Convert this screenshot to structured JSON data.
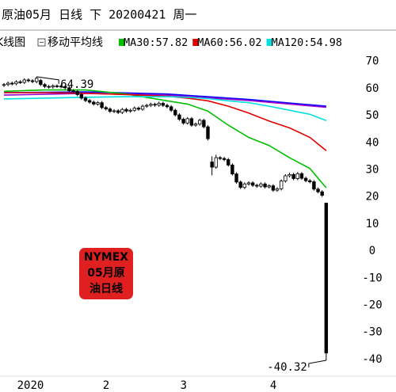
{
  "header": {
    "title": "原油05月 日线 下 20200421 周一"
  },
  "legend": {
    "chart_label": "K线图",
    "ma_label": "移动平均线"
  },
  "badge": [
    "NYMEX",
    "05月原",
    "油日线"
  ],
  "chart_data": {
    "type": "candlestick",
    "categories": [
      null,
      null,
      null,
      null,
      "2020",
      null,
      null,
      null,
      null,
      null,
      null,
      null,
      null,
      null,
      null,
      null,
      null,
      null,
      null,
      null,
      null,
      null,
      null,
      null,
      null,
      "2",
      null,
      null,
      null,
      null,
      null,
      null,
      null,
      null,
      null,
      null,
      null,
      null,
      null,
      null,
      null,
      null,
      null,
      null,
      "3",
      null,
      null,
      null,
      null,
      null,
      null,
      null,
      null,
      null,
      null,
      null,
      null,
      null,
      null,
      null,
      null,
      null,
      null,
      null,
      null,
      null,
      "4",
      null,
      null,
      null,
      null,
      null,
      null,
      null,
      null,
      null,
      null,
      null,
      null,
      null
    ],
    "open": [
      61.2,
      61.5,
      62.0,
      61.8,
      62.5,
      62.3,
      63.2,
      62.9,
      62.6,
      63.0,
      61.5,
      60.8,
      60.6,
      61.0,
      60.9,
      60.7,
      60.3,
      59.2,
      59.0,
      57.8,
      56.5,
      55.6,
      55.0,
      54.3,
      54.8,
      53.0,
      52.5,
      51.6,
      51.8,
      51.2,
      52.3,
      51.7,
      52.0,
      52.8,
      52.4,
      53.5,
      53.8,
      54.2,
      53.9,
      54.6,
      53.8,
      53.3,
      52.0,
      50.3,
      48.7,
      47.3,
      48.9,
      46.5,
      46.9,
      48.3,
      45.9,
      32.9,
      31.0,
      34.5,
      34.2,
      33.8,
      31.8,
      28.5,
      25.5,
      23.5,
      24.8,
      25.2,
      24.3,
      24.0,
      24.8,
      23.7,
      24.1,
      22.5,
      23.0,
      25.9,
      27.8,
      28.3,
      26.8,
      28.6,
      26.9,
      26.0,
      25.6,
      22.9,
      21.9,
      17.73
    ],
    "high": [
      62.1,
      62.6,
      62.6,
      63.1,
      63.1,
      63.8,
      63.8,
      63.5,
      64.39,
      63.6,
      62.1,
      61.4,
      61.6,
      61.6,
      61.5,
      61.3,
      60.9,
      59.8,
      59.6,
      58.4,
      57.1,
      56.2,
      55.6,
      55.4,
      55.4,
      53.6,
      53.1,
      52.4,
      52.4,
      52.9,
      52.9,
      52.6,
      53.4,
      53.4,
      54.1,
      54.4,
      54.8,
      54.8,
      55.2,
      55.2,
      54.4,
      53.9,
      52.6,
      50.9,
      49.3,
      49.5,
      49.5,
      47.5,
      48.9,
      48.9,
      46.5,
      35.0,
      35.6,
      35.1,
      34.8,
      34.4,
      32.4,
      29.1,
      26.1,
      25.4,
      25.8,
      25.8,
      24.9,
      25.4,
      25.4,
      24.7,
      24.7,
      23.6,
      26.5,
      28.4,
      28.9,
      28.9,
      29.2,
      29.2,
      27.5,
      26.6,
      26.2,
      23.5,
      22.5,
      17.85
    ],
    "low": [
      60.6,
      60.9,
      61.2,
      61.2,
      61.7,
      61.7,
      62.3,
      62.0,
      62.0,
      60.9,
      60.2,
      60.0,
      60.0,
      60.3,
      60.1,
      59.7,
      58.6,
      58.4,
      57.2,
      55.9,
      55.0,
      54.4,
      53.7,
      53.7,
      52.4,
      51.9,
      51.0,
      51.0,
      50.6,
      50.6,
      51.1,
      51.1,
      51.4,
      51.8,
      51.8,
      52.9,
      53.2,
      53.3,
      53.3,
      53.2,
      52.7,
      51.4,
      49.7,
      48.1,
      46.7,
      46.7,
      45.9,
      45.9,
      46.3,
      45.3,
      40.9,
      28.0,
      30.4,
      33.6,
      33.2,
      31.2,
      27.9,
      24.9,
      22.9,
      22.9,
      24.2,
      23.7,
      23.4,
      23.4,
      23.1,
      23.1,
      21.9,
      21.9,
      22.4,
      25.3,
      27.2,
      26.2,
      26.2,
      26.3,
      25.4,
      25.0,
      22.3,
      21.3,
      20.0,
      -40.32
    ],
    "close": [
      61.5,
      62.0,
      61.8,
      62.5,
      62.3,
      63.2,
      62.9,
      62.6,
      63.8,
      61.5,
      60.8,
      60.6,
      61.0,
      60.9,
      60.7,
      60.3,
      59.2,
      59.0,
      57.8,
      56.5,
      55.6,
      55.0,
      54.3,
      54.8,
      53.0,
      52.5,
      51.6,
      51.8,
      51.2,
      52.3,
      51.7,
      52.0,
      52.8,
      52.4,
      53.5,
      53.8,
      54.2,
      53.9,
      54.6,
      53.8,
      53.3,
      52.0,
      50.3,
      48.7,
      47.3,
      48.9,
      46.5,
      46.9,
      48.3,
      45.9,
      41.5,
      31.0,
      34.5,
      34.2,
      33.8,
      31.8,
      28.5,
      25.5,
      23.5,
      24.8,
      25.2,
      24.3,
      24.0,
      24.8,
      23.7,
      24.1,
      22.5,
      23.0,
      25.9,
      27.8,
      28.3,
      26.8,
      28.6,
      26.9,
      26.0,
      25.6,
      22.9,
      21.9,
      20.6,
      -37.63
    ],
    "annotations": [
      "64.39",
      "-40.32"
    ],
    "lines": [
      {
        "color": "#0000ff",
        "x": [
          0,
          20,
          40,
          60,
          79
        ],
        "values": [
          58.5,
          58.8,
          58.0,
          56.0,
          53.5
        ]
      },
      {
        "color": "#9900cc",
        "x": [
          0,
          20,
          40,
          60,
          79
        ],
        "values": [
          57.6,
          58.2,
          57.6,
          55.6,
          53.1
        ]
      },
      {
        "name": "MA30:57.82",
        "color": "#00c000",
        "x": [
          0,
          10,
          20,
          30,
          40,
          45,
          50,
          55,
          60,
          65,
          70,
          75,
          79
        ],
        "values": [
          59.0,
          59.5,
          59.5,
          58.0,
          55.5,
          54.3,
          51.7,
          46.5,
          42.0,
          39.0,
          34.5,
          30.5,
          23.4
        ]
      },
      {
        "name": "MA60:56.02",
        "color": "#e00000",
        "x": [
          0,
          10,
          20,
          30,
          40,
          45,
          50,
          55,
          60,
          65,
          70,
          75,
          79
        ],
        "values": [
          58.5,
          58.5,
          58.3,
          57.8,
          57.2,
          56.5,
          55.5,
          53.5,
          51.0,
          48.0,
          45.5,
          42.0,
          37.1
        ]
      },
      {
        "name": "MA120:54.98",
        "color": "#00e0e0",
        "x": [
          0,
          10,
          20,
          30,
          40,
          45,
          50,
          55,
          60,
          65,
          70,
          75,
          79
        ],
        "values": [
          56.2,
          56.5,
          56.8,
          57.0,
          57.0,
          56.8,
          56.3,
          55.5,
          54.8,
          53.5,
          52.0,
          50.5,
          48.2
        ]
      }
    ],
    "ylim": [
      -44,
      74
    ],
    "yticks": [
      70,
      60,
      50,
      40,
      30,
      20,
      10,
      0,
      -10,
      -20,
      -30,
      -40
    ]
  }
}
